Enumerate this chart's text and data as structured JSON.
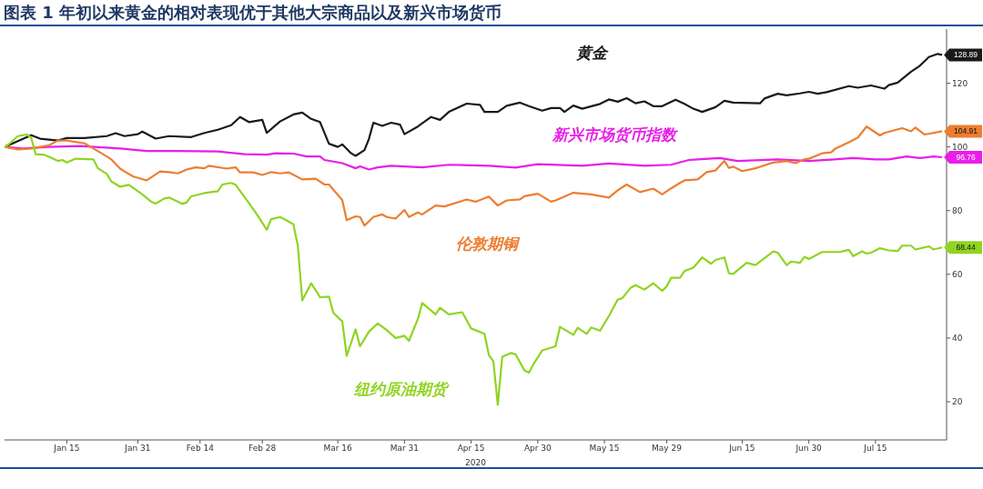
{
  "chart_data": {
    "type": "line",
    "title": "图表 1 年初以来黄金的相对表现优于其他大宗商品以及新兴市场货币",
    "xlabel": "2020",
    "xlim": [
      "2020-01-01",
      "2020-07-31"
    ],
    "xticks": [
      {
        "value": "2020-01-15",
        "label": "Jan 15"
      },
      {
        "value": "2020-01-31",
        "label": "Jan 31"
      },
      {
        "value": "2020-02-14",
        "label": "Feb 14"
      },
      {
        "value": "2020-02-28",
        "label": "Feb 28"
      },
      {
        "value": "2020-03-16",
        "label": "Mar 16"
      },
      {
        "value": "2020-03-31",
        "label": "Mar 31"
      },
      {
        "value": "2020-04-15",
        "label": "Apr 15"
      },
      {
        "value": "2020-04-30",
        "label": "Apr 30"
      },
      {
        "value": "2020-05-15",
        "label": "May 15"
      },
      {
        "value": "2020-05-29",
        "label": "May 29"
      },
      {
        "value": "2020-06-15",
        "label": "Jun 15"
      },
      {
        "value": "2020-06-30",
        "label": "Jun 30"
      },
      {
        "value": "2020-07-15",
        "label": "Jul 15"
      }
    ],
    "ylim": [
      8,
      137
    ],
    "yticks": [
      20,
      40,
      60,
      80,
      100,
      120
    ],
    "series": [
      {
        "name": "黄金",
        "color": "#1a1a1a",
        "x": [
          "2020-01-01",
          "2020-01-07",
          "2020-01-09",
          "2020-01-13",
          "2020-01-15",
          "2020-01-19",
          "2020-01-24",
          "2020-01-26",
          "2020-01-28",
          "2020-01-31",
          "2020-02-01",
          "2020-02-04",
          "2020-02-07",
          "2020-02-12",
          "2020-02-15",
          "2020-02-18",
          "2020-02-21",
          "2020-02-23",
          "2020-02-25",
          "2020-02-28",
          "2020-02-29",
          "2020-03-03",
          "2020-03-06",
          "2020-03-08",
          "2020-03-10",
          "2020-03-12",
          "2020-03-14",
          "2020-03-16",
          "2020-03-17",
          "2020-03-19",
          "2020-03-20",
          "2020-03-22",
          "2020-03-23",
          "2020-03-24",
          "2020-03-26",
          "2020-03-28",
          "2020-03-30",
          "2020-03-31",
          "2020-04-03",
          "2020-04-06",
          "2020-04-08",
          "2020-04-10",
          "2020-04-14",
          "2020-04-17",
          "2020-04-18",
          "2020-04-21",
          "2020-04-23",
          "2020-04-26",
          "2020-04-28",
          "2020-05-01",
          "2020-05-03",
          "2020-05-05",
          "2020-05-06",
          "2020-05-08",
          "2020-05-10",
          "2020-05-14",
          "2020-05-16",
          "2020-05-18",
          "2020-05-20",
          "2020-05-22",
          "2020-05-24",
          "2020-05-26",
          "2020-05-28",
          "2020-05-31",
          "2020-06-02",
          "2020-06-04",
          "2020-06-06",
          "2020-06-09",
          "2020-06-11",
          "2020-06-13",
          "2020-06-19",
          "2020-06-20",
          "2020-06-23",
          "2020-06-25",
          "2020-06-28",
          "2020-06-30",
          "2020-07-02",
          "2020-07-04",
          "2020-07-09",
          "2020-07-11",
          "2020-07-14",
          "2020-07-17",
          "2020-07-18",
          "2020-07-20",
          "2020-07-23",
          "2020-07-25",
          "2020-07-27",
          "2020-07-29",
          "2020-07-30"
        ],
        "values": [
          100,
          103.7,
          102.6,
          102,
          102.8,
          102.8,
          103.4,
          104.3,
          103.4,
          104,
          104.8,
          102.6,
          103.4,
          103.1,
          104.4,
          105.4,
          106.8,
          109.4,
          107.8,
          108.5,
          104.4,
          108,
          110.2,
          110.8,
          108.8,
          107.8,
          101,
          100,
          100.8,
          98,
          97.2,
          99,
          102.5,
          107.6,
          106.6,
          107.6,
          107,
          104,
          106.4,
          109.4,
          108.5,
          111,
          113.6,
          113.2,
          111,
          111,
          112.9,
          113.9,
          112.8,
          111.4,
          112.2,
          112.2,
          111,
          113,
          112,
          113.5,
          114.9,
          114.2,
          115.3,
          113.7,
          114.3,
          112.8,
          112.8,
          114.8,
          113.5,
          112,
          111,
          112.5,
          114.5,
          113.9,
          113.7,
          115.2,
          116.7,
          116.2,
          116.8,
          117.3,
          116.7,
          117.2,
          119.1,
          118.6,
          119.3,
          118.3,
          119.4,
          120.2,
          123.6,
          125.5,
          128.2,
          129.2,
          128.89
        ],
        "value_labels": [
          null,
          null,
          null,
          null,
          null,
          null,
          null,
          null,
          null,
          null,
          null,
          null,
          null,
          null,
          null,
          null,
          null,
          null,
          null,
          null,
          null,
          null,
          null,
          null,
          null,
          null,
          null,
          null,
          null,
          null,
          null,
          null,
          null,
          null,
          null,
          null,
          null,
          null,
          null,
          null,
          null,
          null,
          null,
          null,
          null,
          null,
          null,
          null,
          null,
          null,
          null,
          null,
          null,
          null,
          null,
          null,
          null,
          null,
          null,
          null,
          null,
          null,
          null,
          null,
          null,
          null,
          null,
          null,
          null,
          null,
          null,
          null,
          null,
          null,
          null,
          null,
          null,
          null,
          null,
          null,
          null,
          null,
          null,
          null,
          null,
          null,
          null,
          null,
          "128.89"
        ]
      },
      {
        "name": "新兴市场货币指数",
        "color": "#e81ee8",
        "x": [
          "2020-01-01",
          "2020-01-05",
          "2020-01-11",
          "2020-01-18",
          "2020-01-27",
          "2020-02-02",
          "2020-02-09",
          "2020-02-18",
          "2020-02-24",
          "2020-02-29",
          "2020-03-02",
          "2020-03-06",
          "2020-03-09",
          "2020-03-12",
          "2020-03-13",
          "2020-03-17",
          "2020-03-20",
          "2020-03-21",
          "2020-03-23",
          "2020-03-25",
          "2020-03-28",
          "2020-04-04",
          "2020-04-10",
          "2020-04-19",
          "2020-04-25",
          "2020-04-30",
          "2020-05-10",
          "2020-05-16",
          "2020-05-24",
          "2020-05-30",
          "2020-06-03",
          "2020-06-10",
          "2020-06-14",
          "2020-06-23",
          "2020-06-30",
          "2020-07-05",
          "2020-07-10",
          "2020-07-15",
          "2020-07-18",
          "2020-07-22",
          "2020-07-25",
          "2020-07-28",
          "2020-07-30"
        ],
        "values": [
          100,
          99.5,
          100,
          100.3,
          99.5,
          98.7,
          98.7,
          98.6,
          97.7,
          97.6,
          98,
          97.9,
          97,
          97,
          95.9,
          94.9,
          93.3,
          93.9,
          92.9,
          93.6,
          94.1,
          93.6,
          94.4,
          94.1,
          93.5,
          94.6,
          94.1,
          94.8,
          94.1,
          94.4,
          95.9,
          96.5,
          95.6,
          96.1,
          95.6,
          96,
          96.5,
          96.1,
          96.1,
          97,
          96.5,
          97,
          96.76
        ],
        "value_labels": [
          null,
          null,
          null,
          null,
          null,
          null,
          null,
          null,
          null,
          null,
          null,
          null,
          null,
          null,
          null,
          null,
          null,
          null,
          null,
          null,
          null,
          null,
          null,
          null,
          null,
          null,
          null,
          null,
          null,
          null,
          null,
          null,
          null,
          null,
          null,
          null,
          null,
          null,
          null,
          null,
          null,
          null,
          "96.76"
        ]
      },
      {
        "name": "伦敦期铜",
        "color": "#ed7d31",
        "x": [
          "2020-01-01",
          "2020-01-04",
          "2020-01-07",
          "2020-01-11",
          "2020-01-13",
          "2020-01-15",
          "2020-01-19",
          "2020-01-21",
          "2020-01-24",
          "2020-01-25",
          "2020-01-27",
          "2020-01-28",
          "2020-01-30",
          "2020-02-02",
          "2020-02-05",
          "2020-02-07",
          "2020-02-09",
          "2020-02-11",
          "2020-02-13",
          "2020-02-15",
          "2020-02-16",
          "2020-02-20",
          "2020-02-22",
          "2020-02-23",
          "2020-02-26",
          "2020-02-28",
          "2020-03-01",
          "2020-03-03",
          "2020-03-05",
          "2020-03-08",
          "2020-03-11",
          "2020-03-13",
          "2020-03-14",
          "2020-03-17",
          "2020-03-18",
          "2020-03-20",
          "2020-03-21",
          "2020-03-22",
          "2020-03-24",
          "2020-03-26",
          "2020-03-27",
          "2020-03-29",
          "2020-03-31",
          "2020-04-01",
          "2020-04-03",
          "2020-04-04",
          "2020-04-07",
          "2020-04-09",
          "2020-04-14",
          "2020-04-16",
          "2020-04-19",
          "2020-04-21",
          "2020-04-23",
          "2020-04-26",
          "2020-04-27",
          "2020-04-30",
          "2020-05-03",
          "2020-05-04",
          "2020-05-08",
          "2020-05-12",
          "2020-05-16",
          "2020-05-18",
          "2020-05-20",
          "2020-05-23",
          "2020-05-26",
          "2020-05-28",
          "2020-05-30",
          "2020-06-01",
          "2020-06-02",
          "2020-06-05",
          "2020-06-07",
          "2020-06-09",
          "2020-06-11",
          "2020-06-12",
          "2020-06-13",
          "2020-06-15",
          "2020-06-18",
          "2020-06-22",
          "2020-06-25",
          "2020-06-27",
          "2020-06-29",
          "2020-06-30",
          "2020-07-03",
          "2020-07-05",
          "2020-07-06",
          "2020-07-09",
          "2020-07-11",
          "2020-07-13",
          "2020-07-16",
          "2020-07-17",
          "2020-07-21",
          "2020-07-23",
          "2020-07-24",
          "2020-07-26",
          "2020-07-27",
          "2020-07-30"
        ],
        "values": [
          100,
          99.2,
          99.5,
          100.5,
          102,
          102,
          101.1,
          99.5,
          97,
          96.1,
          93.2,
          92.3,
          90.7,
          89.5,
          92.3,
          92.1,
          91.7,
          92.9,
          93.6,
          93.3,
          94.1,
          93.2,
          93.6,
          92,
          92,
          91.2,
          92.1,
          91.7,
          92,
          89.8,
          90,
          88.2,
          88.2,
          83.3,
          77,
          78.2,
          78,
          75.3,
          78,
          78.8,
          78,
          77.5,
          80.2,
          78,
          79.4,
          78.8,
          81.6,
          81.3,
          83.5,
          82.8,
          84.4,
          81.6,
          83.2,
          83.5,
          84.5,
          85.3,
          82.8,
          83.2,
          85.6,
          85.1,
          84.1,
          86.4,
          88.2,
          85.8,
          86.9,
          85.1,
          87,
          88.7,
          89.5,
          89.8,
          92.1,
          92.6,
          95.6,
          93.4,
          93.8,
          92.4,
          93.3,
          95.1,
          95.6,
          94.9,
          96.1,
          96.3,
          98,
          98.3,
          99.5,
          101.5,
          102.9,
          106.4,
          103.6,
          104.4,
          105.9,
          104.9,
          106.1,
          103.9,
          104.1,
          104.91
        ],
        "value_labels": [
          null,
          null,
          null,
          null,
          null,
          null,
          null,
          null,
          null,
          null,
          null,
          null,
          null,
          null,
          null,
          null,
          null,
          null,
          null,
          null,
          null,
          null,
          null,
          null,
          null,
          null,
          null,
          null,
          null,
          null,
          null,
          null,
          null,
          null,
          null,
          null,
          null,
          null,
          null,
          null,
          null,
          null,
          null,
          null,
          null,
          null,
          null,
          null,
          null,
          null,
          null,
          null,
          null,
          null,
          null,
          null,
          null,
          null,
          null,
          null,
          null,
          null,
          null,
          null,
          null,
          null,
          null,
          null,
          null,
          null,
          null,
          null,
          null,
          null,
          null,
          null,
          null,
          null,
          null,
          null,
          null,
          null,
          null,
          null,
          null,
          null,
          null,
          null,
          null,
          null,
          null,
          null,
          null,
          null,
          null,
          "104.91"
        ]
      },
      {
        "name": "纽约原油期货",
        "color": "#8fd422",
        "x": [
          "2020-01-01",
          "2020-01-02",
          "2020-01-04",
          "2020-01-06",
          "2020-01-07",
          "2020-01-08",
          "2020-01-10",
          "2020-01-11",
          "2020-01-13",
          "2020-01-14",
          "2020-01-15",
          "2020-01-17",
          "2020-01-21",
          "2020-01-22",
          "2020-01-24",
          "2020-01-25",
          "2020-01-27",
          "2020-01-29",
          "2020-01-31",
          "2020-02-01",
          "2020-02-03",
          "2020-02-04",
          "2020-02-06",
          "2020-02-07",
          "2020-02-10",
          "2020-02-11",
          "2020-02-12",
          "2020-02-15",
          "2020-02-18",
          "2020-02-19",
          "2020-02-21",
          "2020-02-22",
          "2020-02-25",
          "2020-02-27",
          "2020-02-29",
          "2020-03-01",
          "2020-03-03",
          "2020-03-04",
          "2020-03-06",
          "2020-03-07",
          "2020-03-08",
          "2020-03-10",
          "2020-03-12",
          "2020-03-14",
          "2020-03-15",
          "2020-03-17",
          "2020-03-18",
          "2020-03-20",
          "2020-03-21",
          "2020-03-23",
          "2020-03-25",
          "2020-03-27",
          "2020-03-29",
          "2020-03-31",
          "2020-04-01",
          "2020-04-03",
          "2020-04-04",
          "2020-04-07",
          "2020-04-08",
          "2020-04-10",
          "2020-04-13",
          "2020-04-15",
          "2020-04-18",
          "2020-04-19",
          "2020-04-20",
          "2020-04-21",
          "2020-04-22",
          "2020-04-24",
          "2020-04-25",
          "2020-04-27",
          "2020-04-28",
          "2020-04-29",
          "2020-05-01",
          "2020-05-04",
          "2020-05-05",
          "2020-05-08",
          "2020-05-09",
          "2020-05-11",
          "2020-05-12",
          "2020-05-14",
          "2020-05-16",
          "2020-05-18",
          "2020-05-19",
          "2020-05-21",
          "2020-05-22",
          "2020-05-24",
          "2020-05-26",
          "2020-05-28",
          "2020-05-29",
          "2020-05-30",
          "2020-06-01",
          "2020-06-02",
          "2020-06-04",
          "2020-06-06",
          "2020-06-08",
          "2020-06-09",
          "2020-06-11",
          "2020-06-12",
          "2020-06-13",
          "2020-06-16",
          "2020-06-18",
          "2020-06-22",
          "2020-06-23",
          "2020-06-25",
          "2020-06-26",
          "2020-06-28",
          "2020-06-29",
          "2020-06-30",
          "2020-07-03",
          "2020-07-07",
          "2020-07-09",
          "2020-07-10",
          "2020-07-12",
          "2020-07-13",
          "2020-07-14",
          "2020-07-16",
          "2020-07-18",
          "2020-07-20",
          "2020-07-21",
          "2020-07-23",
          "2020-07-24",
          "2020-07-27",
          "2020-07-28",
          "2020-07-30"
        ],
        "values": [
          100,
          100.9,
          103.4,
          103.9,
          102.9,
          97.7,
          97.5,
          96.9,
          95.6,
          95.9,
          95.1,
          96.3,
          96.1,
          93.3,
          91.5,
          89.2,
          87.5,
          88.1,
          86.1,
          85.1,
          82.8,
          82.2,
          83.8,
          84.1,
          82.1,
          82.6,
          84.5,
          85.5,
          86.1,
          88.2,
          88.7,
          88.1,
          82.4,
          78.4,
          74,
          77.3,
          78,
          77.3,
          75.7,
          69,
          51.8,
          57.2,
          52.8,
          53,
          47.9,
          45.2,
          34.4,
          42.7,
          37.4,
          42,
          44.6,
          42.5,
          40,
          40.7,
          39.1,
          45.9,
          51,
          47.4,
          49.5,
          47.4,
          48.1,
          43,
          41.3,
          34.6,
          32.7,
          19,
          34.1,
          35.3,
          34.9,
          29.8,
          29.1,
          31.7,
          36.1,
          37.4,
          43.5,
          41,
          43.2,
          41.3,
          43.3,
          42.3,
          46.9,
          52.1,
          52.5,
          55.9,
          56.6,
          55.2,
          57.2,
          54.8,
          56.2,
          58.9,
          58.9,
          61,
          62.1,
          65.3,
          63.3,
          64.5,
          65.3,
          60.3,
          60.1,
          63.6,
          62.9,
          67.2,
          66.8,
          62.9,
          64,
          63.6,
          65.5,
          64.8,
          67,
          67,
          67.7,
          65.7,
          67.2,
          66.5,
          66.8,
          68.2,
          67.5,
          67.3,
          69,
          69,
          67.8,
          68.8,
          67.8,
          68.44
        ],
        "value_labels": [
          null,
          null,
          null,
          null,
          null,
          null,
          null,
          null,
          null,
          null,
          null,
          null,
          null,
          null,
          null,
          null,
          null,
          null,
          null,
          null,
          null,
          null,
          null,
          null,
          null,
          null,
          null,
          null,
          null,
          null,
          null,
          null,
          null,
          null,
          null,
          null,
          null,
          null,
          null,
          null,
          null,
          null,
          null,
          null,
          null,
          null,
          null,
          null,
          null,
          null,
          null,
          null,
          null,
          null,
          null,
          null,
          null,
          null,
          null,
          null,
          null,
          null,
          null,
          null,
          null,
          null,
          null,
          null,
          null,
          null,
          null,
          null,
          null,
          null,
          null,
          null,
          null,
          null,
          null,
          null,
          null,
          null,
          null,
          null,
          null,
          null,
          null,
          null,
          null,
          null,
          null,
          null,
          null,
          null,
          null,
          null,
          null,
          null,
          null,
          null,
          null,
          null,
          null,
          null,
          null,
          null,
          null,
          null,
          null,
          null,
          null,
          null,
          null,
          null,
          null,
          null,
          null,
          null,
          null,
          null,
          null,
          null,
          null,
          "68.44"
        ]
      }
    ]
  }
}
